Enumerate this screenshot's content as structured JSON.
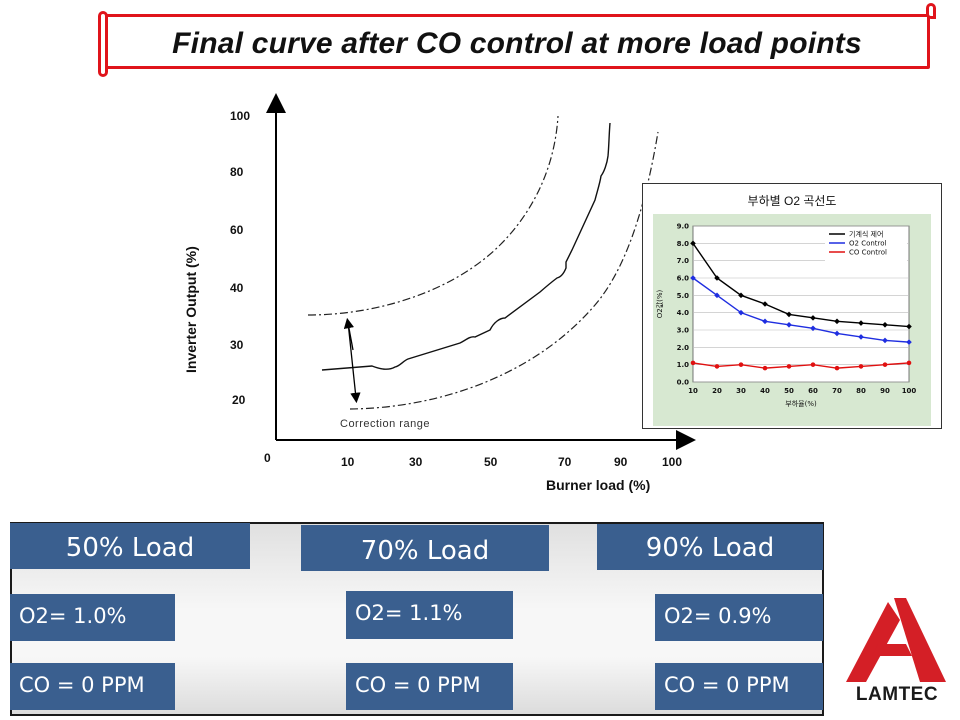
{
  "title": "Final curve after CO control at more load points",
  "main_chart": {
    "y_label": "Inverter Output (%)",
    "x_label": "Burner load (%)",
    "y_ticks": [
      "100",
      "80",
      "60",
      "40",
      "30",
      "20"
    ],
    "x_ticks": [
      "10",
      "30",
      "50",
      "70",
      "90",
      "100"
    ],
    "origin_label": "0",
    "correction_label": "Correction range"
  },
  "chart_data": {
    "type": "line",
    "title": "부하별 O2 곡선도",
    "xlabel": "부하율(%)",
    "ylabel": "O2값(%)",
    "categories": [
      10,
      20,
      30,
      40,
      50,
      60,
      70,
      80,
      90,
      100
    ],
    "ylim": [
      0,
      9
    ],
    "y_ticks": [
      "9.0",
      "8.0",
      "7.0",
      "6.0",
      "5.0",
      "4.0",
      "3.0",
      "2.0",
      "1.0",
      "0.0"
    ],
    "legend_position": "top-right",
    "series": [
      {
        "name": "기계식 제어",
        "color": "#000000",
        "values": [
          8.0,
          6.0,
          5.0,
          4.5,
          3.9,
          3.7,
          3.5,
          3.4,
          3.3,
          3.2
        ]
      },
      {
        "name": "O2 Control",
        "color": "#1f2ee0",
        "values": [
          6.0,
          5.0,
          4.0,
          3.5,
          3.3,
          3.1,
          2.8,
          2.6,
          2.4,
          2.3
        ]
      },
      {
        "name": "CO Control",
        "color": "#e01010",
        "values": [
          1.1,
          0.9,
          1.0,
          0.8,
          0.9,
          1.0,
          0.8,
          0.9,
          1.0,
          1.1
        ]
      }
    ]
  },
  "loads": [
    {
      "head": "50% Load",
      "o2": "O2= 1.0%",
      "co": "CO = 0 PPM"
    },
    {
      "head": "70% Load",
      "o2": "O2= 1.1%",
      "co": "CO = 0 PPM"
    },
    {
      "head": "90% Load",
      "o2": "O2= 0.9%",
      "co": "CO = 0 PPM"
    }
  ],
  "logo": {
    "text": "LAMTEC"
  },
  "colors": {
    "accent_red": "#e0141b",
    "block_blue": "#3a5f8f",
    "inset_bg": "#d7e8d1"
  }
}
